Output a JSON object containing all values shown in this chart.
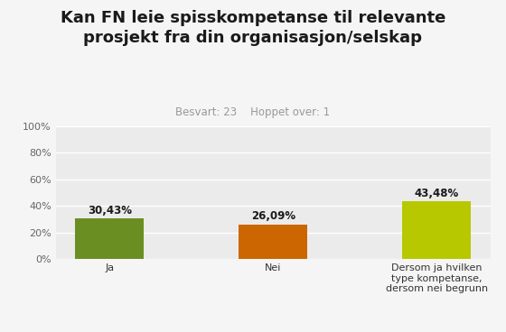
{
  "title_line1": "Kan FN leie spisskompetanse til relevante",
  "title_line2": "prosjekt fra din organisasjon/selskap",
  "subtitle": "Besvart: 23    Hoppet over: 1",
  "categories": [
    "Ja",
    "Nei",
    "Dersom ja hvilken\ntype kompetanse,\ndersom nei begrunn"
  ],
  "values": [
    30.43,
    26.09,
    43.48
  ],
  "bar_colors": [
    "#6b8e23",
    "#cc6600",
    "#b8c800"
  ],
  "bar_labels": [
    "30,43%",
    "26,09%",
    "43,48%"
  ],
  "ylim": [
    0,
    100
  ],
  "yticks": [
    0,
    20,
    40,
    60,
    80,
    100
  ],
  "ytick_labels": [
    "0%",
    "20%",
    "40%",
    "60%",
    "80%",
    "100%"
  ],
  "fig_bg_color": "#f5f5f5",
  "plot_bg_color": "#ebebeb",
  "title_color": "#1a1a1a",
  "subtitle_color": "#999999",
  "label_color": "#1a1a1a",
  "grid_color": "#ffffff",
  "xtick_color": "#333333",
  "ytick_color": "#666666",
  "title_fontsize": 13,
  "subtitle_fontsize": 8.5,
  "bar_label_fontsize": 8.5,
  "xtick_fontsize": 8,
  "ytick_fontsize": 8
}
